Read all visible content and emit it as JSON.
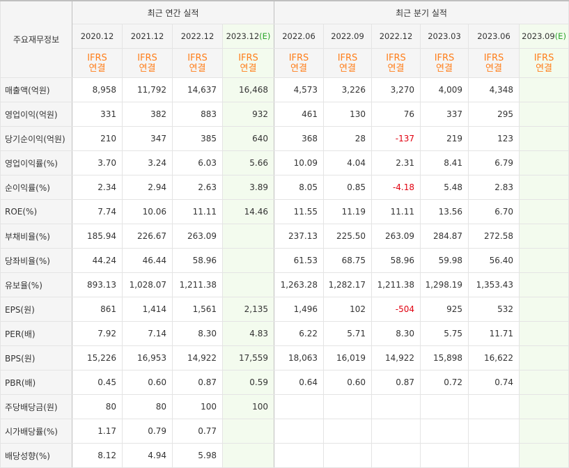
{
  "header": {
    "corner_label": "주요재무정보",
    "annual_title": "최근 연간 실적",
    "quarterly_title": "최근 분기 실적",
    "annual_periods": [
      {
        "label": "2020.12",
        "est": ""
      },
      {
        "label": "2021.12",
        "est": ""
      },
      {
        "label": "2022.12",
        "est": ""
      },
      {
        "label": "2023.12",
        "est": "(E)"
      }
    ],
    "quarterly_periods": [
      {
        "label": "2022.06",
        "est": ""
      },
      {
        "label": "2022.09",
        "est": ""
      },
      {
        "label": "2022.12",
        "est": ""
      },
      {
        "label": "2023.03",
        "est": ""
      },
      {
        "label": "2023.06",
        "est": ""
      },
      {
        "label": "2023.09",
        "est": "(E)"
      }
    ],
    "ifrs_line1": "IFRS",
    "ifrs_line2": "연결"
  },
  "rows": [
    {
      "label": "매출액(억원)",
      "group_start": true,
      "values": [
        "8,958",
        "11,792",
        "14,637",
        "16,468",
        "4,573",
        "3,226",
        "3,270",
        "4,009",
        "4,348",
        ""
      ]
    },
    {
      "label": "영업이익(억원)",
      "values": [
        "331",
        "382",
        "883",
        "932",
        "461",
        "130",
        "76",
        "337",
        "295",
        ""
      ]
    },
    {
      "label": "당기순이익(억원)",
      "values": [
        "210",
        "347",
        "385",
        "640",
        "368",
        "28",
        "-137",
        "219",
        "123",
        ""
      ]
    },
    {
      "label": "영업이익률(%)",
      "group_start": true,
      "values": [
        "3.70",
        "3.24",
        "6.03",
        "5.66",
        "10.09",
        "4.04",
        "2.31",
        "8.41",
        "6.79",
        ""
      ]
    },
    {
      "label": "순이익률(%)",
      "values": [
        "2.34",
        "2.94",
        "2.63",
        "3.89",
        "8.05",
        "0.85",
        "-4.18",
        "5.48",
        "2.83",
        ""
      ]
    },
    {
      "label": "ROE(%)",
      "values": [
        "7.74",
        "10.06",
        "11.11",
        "14.46",
        "11.55",
        "11.19",
        "11.11",
        "13.56",
        "6.70",
        ""
      ]
    },
    {
      "label": "부채비율(%)",
      "group_start": true,
      "values": [
        "185.94",
        "226.67",
        "263.09",
        "",
        "237.13",
        "225.50",
        "263.09",
        "284.87",
        "272.58",
        ""
      ]
    },
    {
      "label": "당좌비율(%)",
      "values": [
        "44.24",
        "46.44",
        "58.96",
        "",
        "61.53",
        "68.75",
        "58.96",
        "59.98",
        "56.40",
        ""
      ]
    },
    {
      "label": "유보율(%)",
      "values": [
        "893.13",
        "1,028.07",
        "1,211.38",
        "",
        "1,263.28",
        "1,282.17",
        "1,211.38",
        "1,298.19",
        "1,353.43",
        ""
      ]
    },
    {
      "label": "EPS(원)",
      "group_start": true,
      "values": [
        "861",
        "1,414",
        "1,561",
        "2,135",
        "1,496",
        "102",
        "-504",
        "925",
        "532",
        ""
      ]
    },
    {
      "label": "PER(배)",
      "values": [
        "7.92",
        "7.14",
        "8.30",
        "4.83",
        "6.22",
        "5.71",
        "8.30",
        "5.75",
        "11.71",
        ""
      ]
    },
    {
      "label": "BPS(원)",
      "values": [
        "15,226",
        "16,953",
        "14,922",
        "17,559",
        "18,063",
        "16,019",
        "14,922",
        "15,898",
        "16,622",
        ""
      ]
    },
    {
      "label": "PBR(배)",
      "values": [
        "0.45",
        "0.60",
        "0.87",
        "0.59",
        "0.64",
        "0.60",
        "0.87",
        "0.72",
        "0.74",
        ""
      ]
    },
    {
      "label": "주당배당금(원)",
      "group_start": true,
      "values": [
        "80",
        "80",
        "100",
        "100",
        "",
        "",
        "",
        "",
        "",
        ""
      ]
    },
    {
      "label": "시가배당률(%)",
      "values": [
        "1.17",
        "0.79",
        "0.77",
        "",
        "",
        "",
        "",
        "",
        "",
        ""
      ]
    },
    {
      "label": "배당성향(%)",
      "values": [
        "8.12",
        "4.94",
        "5.98",
        "",
        "",
        "",
        "",
        "",
        "",
        ""
      ]
    }
  ],
  "colors": {
    "ifrs": "#ff7e1a",
    "negative": "#e1000f",
    "estimate_bg": "#f3fbee",
    "estimate_mark": "#29a329",
    "header_bg": "#f5f5f5"
  }
}
